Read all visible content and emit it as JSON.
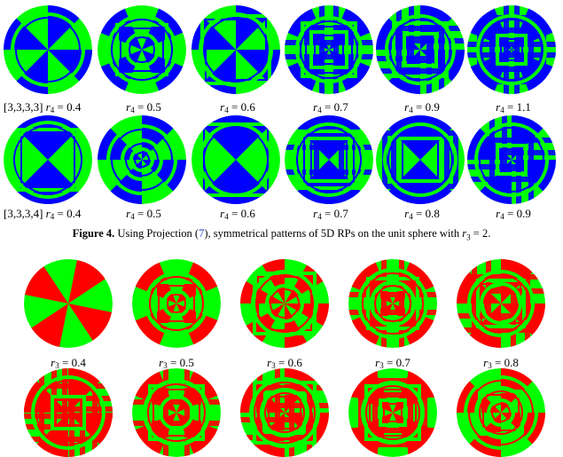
{
  "figure4": {
    "row1": [
      {
        "prefix": "[3,3,3,3]",
        "var": "r",
        "sub": "4",
        "value": "0.4"
      },
      {
        "prefix": "",
        "var": "r",
        "sub": "4",
        "value": "0.5"
      },
      {
        "prefix": "",
        "var": "r",
        "sub": "4",
        "value": "0.6"
      },
      {
        "prefix": "",
        "var": "r",
        "sub": "4",
        "value": "0.7"
      },
      {
        "prefix": "",
        "var": "r",
        "sub": "4",
        "value": "0.9"
      },
      {
        "prefix": "",
        "var": "r",
        "sub": "4",
        "value": "1.1"
      }
    ],
    "row2": [
      {
        "prefix": "[3,3,3,4]",
        "var": "r",
        "sub": "4",
        "value": "0.4"
      },
      {
        "prefix": "",
        "var": "r",
        "sub": "4",
        "value": "0.5"
      },
      {
        "prefix": "",
        "var": "r",
        "sub": "4",
        "value": "0.6"
      },
      {
        "prefix": "",
        "var": "r",
        "sub": "4",
        "value": "0.7"
      },
      {
        "prefix": "",
        "var": "r",
        "sub": "4",
        "value": "0.8"
      },
      {
        "prefix": "",
        "var": "r",
        "sub": "4",
        "value": "0.9"
      }
    ],
    "colors": {
      "a": "#0000ff",
      "b": "#00ff00"
    },
    "caption": {
      "label": "Figure 4.",
      "text_before": "Using Projection (",
      "ref": "7",
      "text_after": "), symmetrical patterns of 5D RPs on the unit sphere with",
      "math_var": "r",
      "math_sub": "3",
      "math_rest": "= 2."
    }
  },
  "figure5": {
    "row1": [
      {
        "prefix": "",
        "var": "r",
        "sub": "3",
        "value": "0.4"
      },
      {
        "prefix": "",
        "var": "r",
        "sub": "3",
        "value": "0.5"
      },
      {
        "prefix": "",
        "var": "r",
        "sub": "3",
        "value": "0.6"
      },
      {
        "prefix": "",
        "var": "r",
        "sub": "3",
        "value": "0.7"
      },
      {
        "prefix": "",
        "var": "r",
        "sub": "3",
        "value": "0.8"
      }
    ],
    "colors": {
      "a": "#ff0000",
      "b": "#00ff00"
    }
  }
}
